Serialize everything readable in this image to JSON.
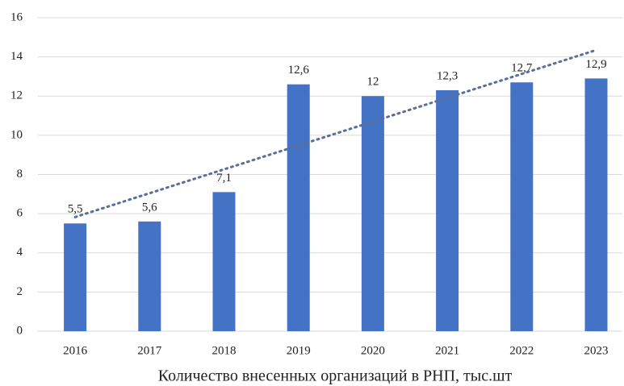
{
  "chart_data": {
    "type": "bar",
    "title": "Количество внесенных организаций в РНП, тыс.шт",
    "categories": [
      "2016",
      "2017",
      "2018",
      "2019",
      "2020",
      "2021",
      "2022",
      "2023"
    ],
    "values": [
      5.5,
      5.6,
      7.1,
      12.6,
      12,
      12.3,
      12.7,
      12.9
    ],
    "value_labels": [
      "5,5",
      "5,6",
      "7,1",
      "12,6",
      "12",
      "12,3",
      "12,7",
      "12,9"
    ],
    "color": "#4472c4",
    "ylim": [
      0,
      16
    ],
    "yticks": [
      0,
      2,
      4,
      6,
      8,
      10,
      12,
      14,
      16
    ],
    "grid": true,
    "trendline": "linear",
    "trendline_color": "#5a6e9c"
  }
}
